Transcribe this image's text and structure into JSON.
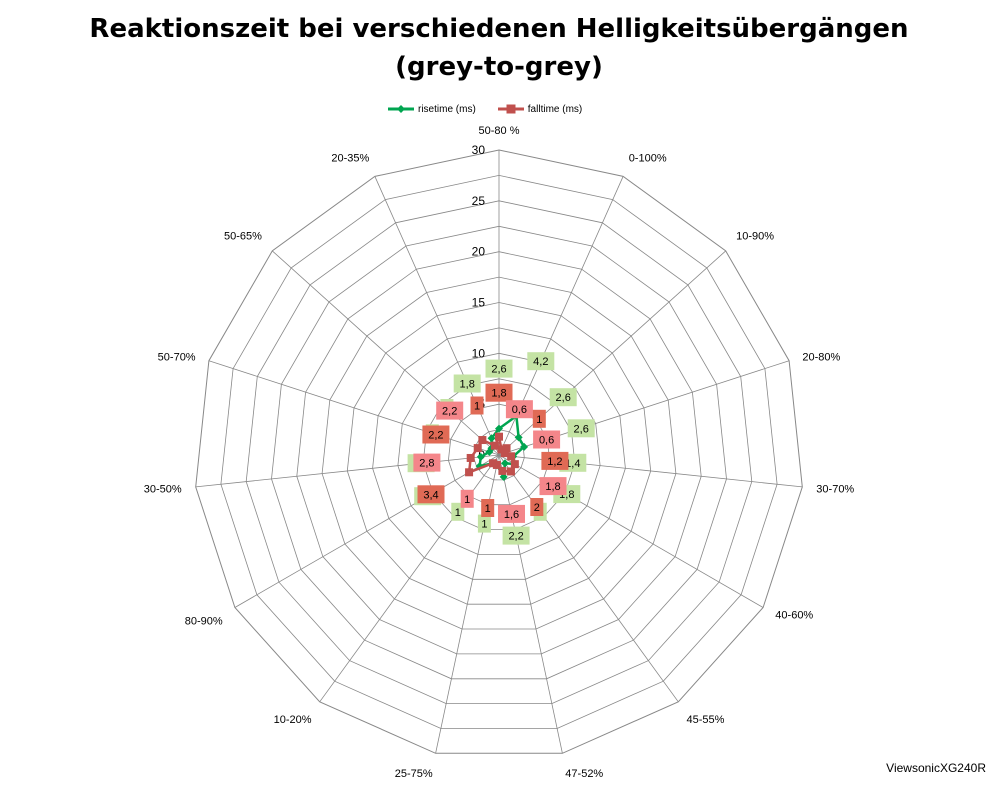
{
  "title": {
    "line1": "Reaktionszeit bei verschiedenen Helligkeitsübergängen",
    "line2": "(grey-to-grey)"
  },
  "credit": "ViewsonicXG240R",
  "colors": {
    "rise": "#00A550",
    "fall": "#C0504D",
    "rise_label_bg": "#C4E3A4",
    "fall_label_bg_light": "#F4868A",
    "fall_label_bg_dark": "#E06A55",
    "grid": "#888888"
  },
  "chart_data": {
    "type": "radar",
    "title": "Reaktionszeit bei verschiedenen Helligkeitsübergängen (grey-to-grey)",
    "categories": [
      "50-80 %",
      "0-100%",
      "10-90%",
      "20-80%",
      "30-70%",
      "40-60%",
      "45-55%",
      "47-52%",
      "25-75%",
      "10-20%",
      "80-90%",
      "30-50%",
      "50-70%",
      "50-65%",
      "20-35%"
    ],
    "rlim": [
      0,
      30
    ],
    "ticks": [
      0,
      5,
      10,
      15,
      20,
      25,
      30
    ],
    "legend_position": "top",
    "series": [
      {
        "name": "risetime (ms)",
        "marker": "diamond",
        "values": [
          2.6,
          4.2,
          2.6,
          2.6,
          1.4,
          1.8,
          1,
          2.2,
          1,
          1,
          2.2,
          1.8,
          1,
          1,
          1.8
        ]
      },
      {
        "name": "falltime (ms)",
        "marker": "square",
        "values": [
          1.8,
          0.6,
          1,
          0.6,
          1.2,
          1.8,
          2,
          1.6,
          1,
          1,
          3.4,
          2.8,
          2.2,
          2.2,
          1
        ]
      }
    ]
  }
}
